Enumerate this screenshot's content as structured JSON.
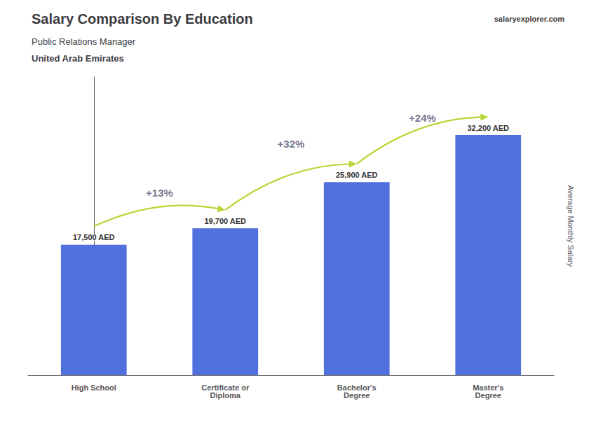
{
  "chart_data": {
    "type": "bar",
    "title": "Salary Comparison By Education",
    "subtitle": "Public Relations Manager",
    "subtitle2": "United Arab Emirates",
    "source": "salaryexplorer.com",
    "ylabel": "Average Monthly Salary",
    "categories": [
      "High School",
      "Certificate or\nDiploma",
      "Bachelor's\nDegree",
      "Master's\nDegree"
    ],
    "values": [
      17500,
      19700,
      25900,
      32200
    ],
    "value_labels": [
      "17,500 AED",
      "19,700 AED",
      "25,900 AED",
      "32,200 AED"
    ],
    "data_labels": true,
    "ylim": [
      0,
      40000
    ],
    "grid": false,
    "tick_labels": "x",
    "annotations": [
      {
        "text": "+13%",
        "from": "High School",
        "to": "Certificate or\nDiploma",
        "y": 24500
      },
      {
        "text": "+32%",
        "from": "Certificate or\nDiploma",
        "to": "Bachelor's\nDegree",
        "y": 31000
      },
      {
        "text": "+24%",
        "from": "Bachelor's\nDegree",
        "to": "Master's\nDegree",
        "y": 34500
      }
    ]
  }
}
